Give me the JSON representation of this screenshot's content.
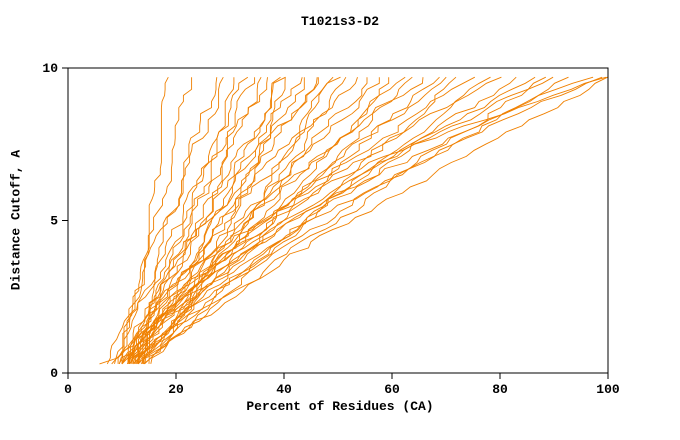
{
  "chart_data": {
    "type": "line",
    "title": "T1021s3-D2",
    "xlabel": "Percent of Residues (CA)",
    "ylabel": "Distance Cutoff, A",
    "xlim": [
      0,
      100
    ],
    "ylim": [
      0,
      10
    ],
    "x_ticks": [
      0,
      20,
      40,
      60,
      80,
      100
    ],
    "y_ticks": [
      0,
      5,
      10
    ],
    "grid": false,
    "legend": "none",
    "line_color": "#f08000",
    "frame_color": "#000000",
    "y_start": 0.3,
    "y_end": 9.7,
    "curve_format": [
      "start_x_percent",
      "end_x_percent",
      "shape_exponent"
    ],
    "curves": [
      [
        5,
        17.5,
        0.35
      ],
      [
        8,
        22,
        0.8
      ],
      [
        9,
        27,
        0.9
      ],
      [
        7,
        29,
        1.0
      ],
      [
        10,
        31,
        0.85
      ],
      [
        11,
        33,
        1.1
      ],
      [
        8,
        34,
        0.75
      ],
      [
        12,
        36,
        0.95
      ],
      [
        9,
        37,
        1.2
      ],
      [
        13,
        39,
        0.9
      ],
      [
        10,
        40,
        1.05
      ],
      [
        14,
        41,
        0.8
      ],
      [
        11,
        43,
        1.15
      ],
      [
        9,
        44,
        0.9
      ],
      [
        12,
        46,
        1.0
      ],
      [
        10,
        47,
        1.25
      ],
      [
        13,
        49,
        0.85
      ],
      [
        11,
        50,
        1.1
      ],
      [
        14,
        52,
        0.95
      ],
      [
        12,
        54,
        1.3
      ],
      [
        10,
        56,
        1.0
      ],
      [
        13,
        58,
        1.15
      ],
      [
        11,
        60,
        0.9
      ],
      [
        14,
        62,
        1.2
      ],
      [
        12,
        64,
        1.0
      ],
      [
        10,
        66,
        1.35
      ],
      [
        13,
        68,
        1.05
      ],
      [
        11,
        70,
        1.2
      ],
      [
        14,
        72,
        0.95
      ],
      [
        12,
        75,
        1.3
      ],
      [
        15,
        78,
        1.1
      ],
      [
        11,
        80,
        1.4
      ],
      [
        13,
        83,
        1.15
      ],
      [
        12,
        86,
        1.3
      ],
      [
        14,
        88,
        1.05
      ],
      [
        11,
        90,
        1.45
      ],
      [
        13,
        93,
        1.2
      ],
      [
        12,
        96,
        1.5
      ],
      [
        10,
        98,
        1.3
      ],
      [
        11,
        100,
        1.1
      ],
      [
        15,
        100,
        2.0
      ]
    ]
  }
}
